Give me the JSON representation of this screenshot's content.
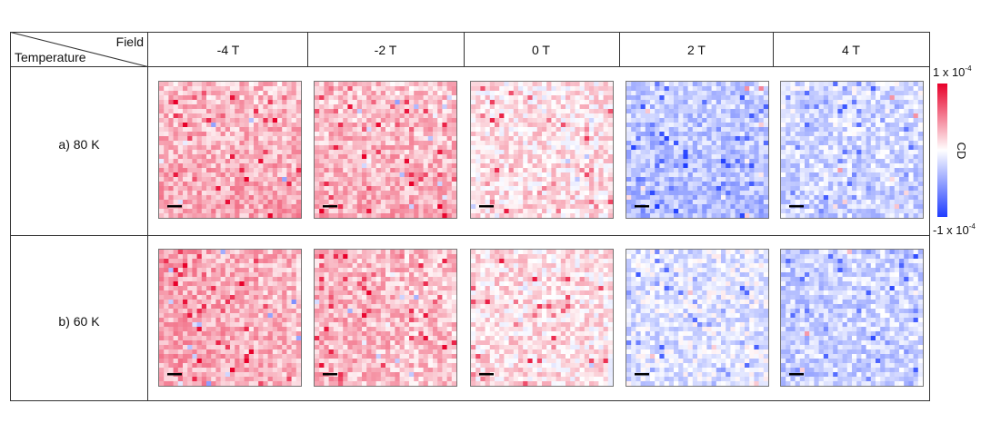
{
  "corner": {
    "top_label": "Field",
    "bottom_label": "Temperature"
  },
  "columns": [
    {
      "label": "-4 T"
    },
    {
      "label": "-2 T"
    },
    {
      "label": "0 T"
    },
    {
      "label": "2 T"
    },
    {
      "label": "4 T"
    }
  ],
  "rows": [
    {
      "label": "a) 80 K"
    },
    {
      "label": "b) 60 K"
    }
  ],
  "colorbar": {
    "max_label": "1 x 10",
    "max_exp": "-4",
    "min_label": "-1 x 10",
    "min_exp": "-4",
    "axis_label": "CD",
    "colors": {
      "max": "#e8002a",
      "mid": "#ffffff",
      "min": "#1f3dff"
    }
  },
  "maps": {
    "a": [
      0.32,
      0.3,
      0.13,
      -0.32,
      -0.22
    ],
    "b": [
      0.36,
      0.3,
      0.14,
      -0.16,
      -0.26
    ]
  }
}
